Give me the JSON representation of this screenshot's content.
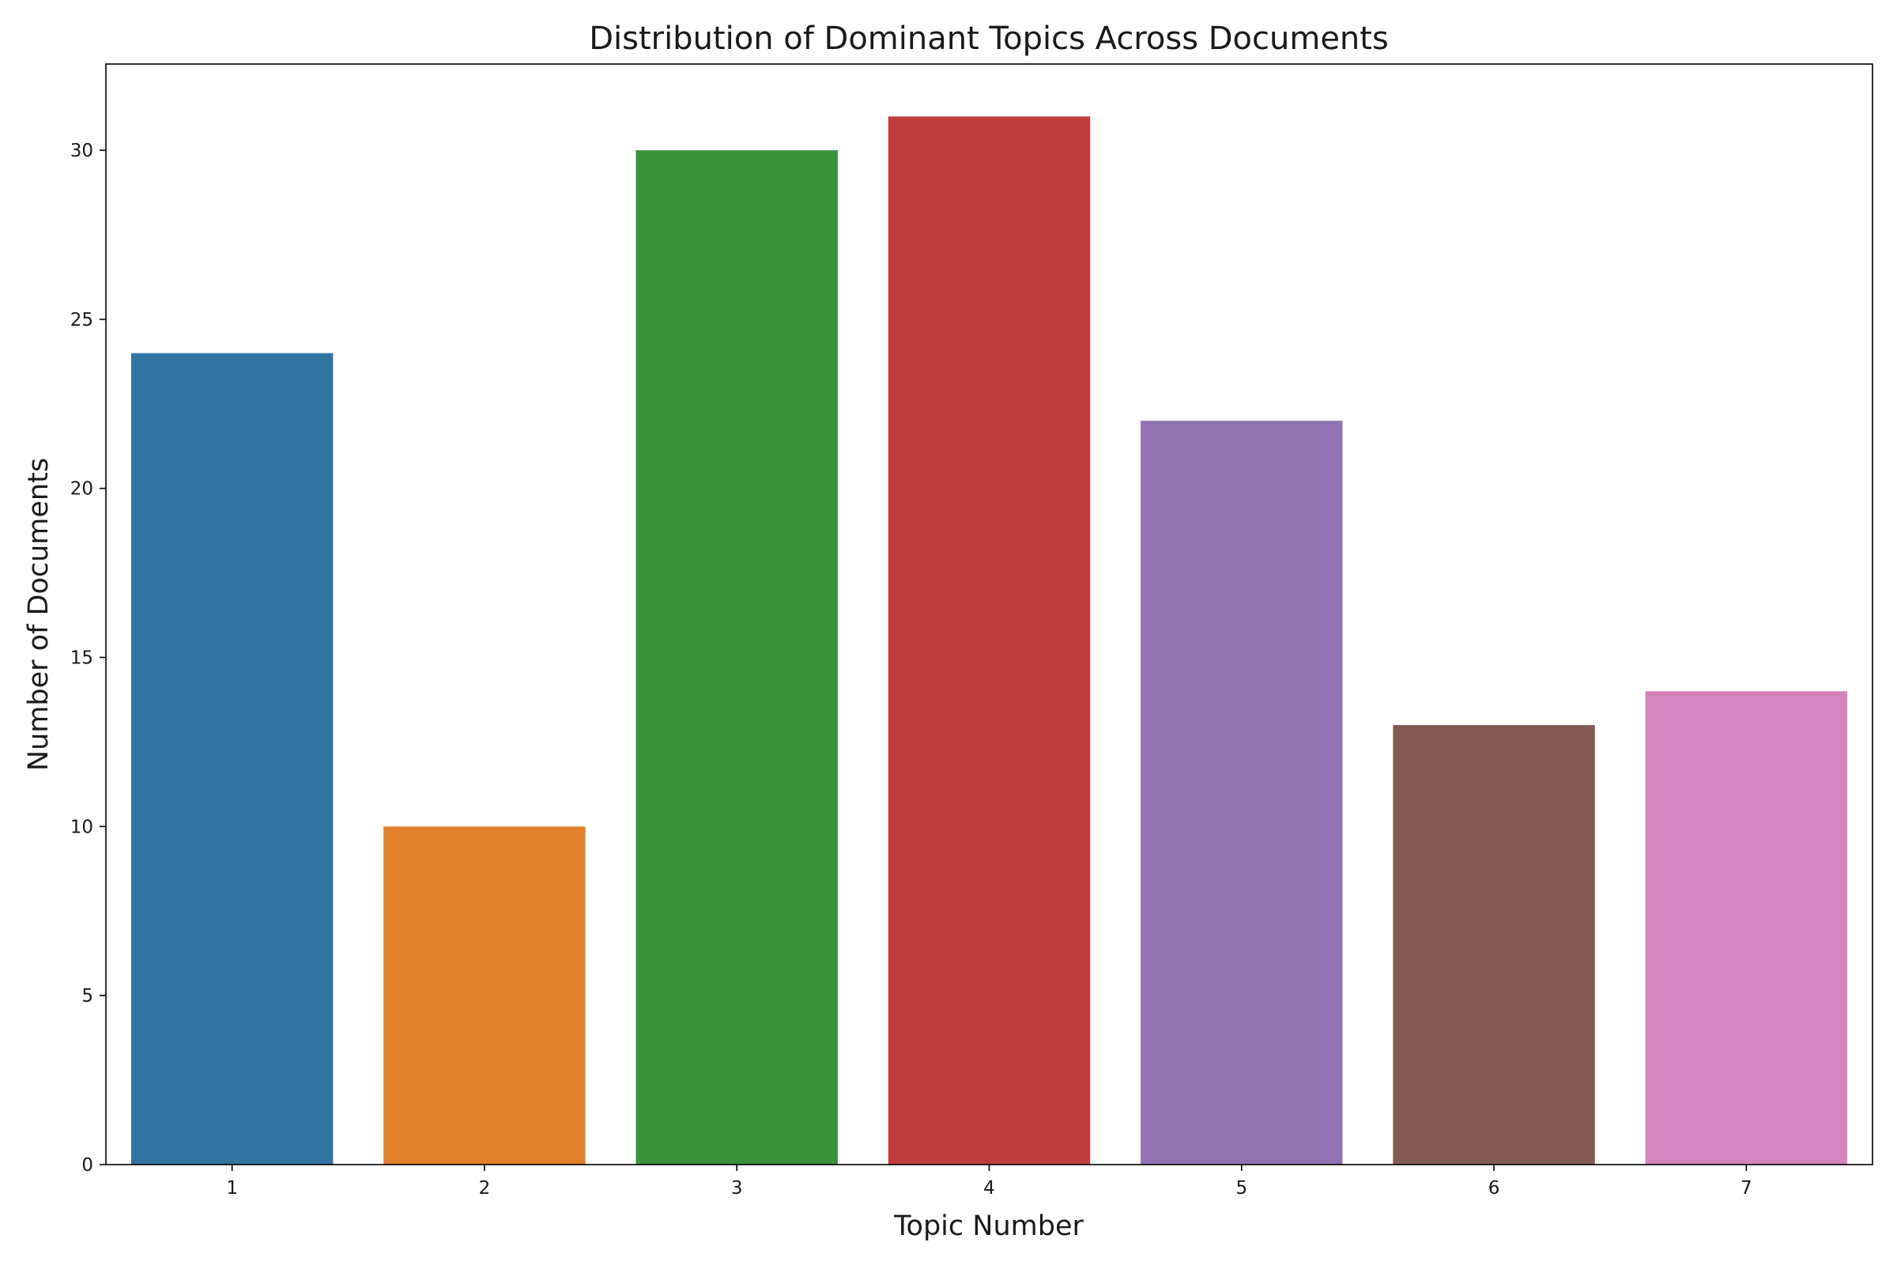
{
  "chart_data": {
    "type": "bar",
    "title": "Distribution of Dominant Topics Across Documents",
    "xlabel": "Topic Number",
    "ylabel": "Number of Documents",
    "categories": [
      "1",
      "2",
      "3",
      "4",
      "5",
      "6",
      "7"
    ],
    "values": [
      24,
      10,
      30,
      31,
      22,
      13,
      14
    ],
    "colors": [
      "#3274a1",
      "#e1812c",
      "#3a923a",
      "#c03d3e",
      "#9372b2",
      "#845b53",
      "#d684bd"
    ],
    "yticks": [
      0,
      5,
      10,
      15,
      20,
      25,
      30
    ],
    "ylim": [
      0,
      32.55
    ],
    "grid": false,
    "legend": "none"
  }
}
